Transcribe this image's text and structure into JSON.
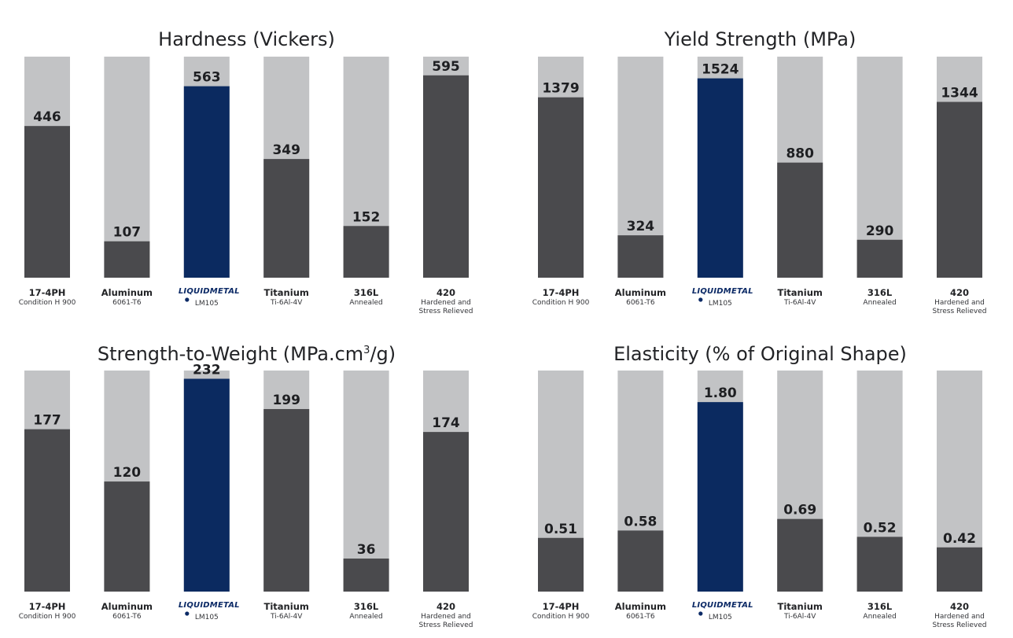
{
  "colors": {
    "background_bar": "#c2c3c5",
    "value_bar": "#4a4a4d",
    "highlight_bar": "#0b2a60",
    "text": "#1e1f22",
    "brand": "#0c2a66"
  },
  "categories": [
    {
      "name": "17-4PH",
      "sub": [
        "Condition H 900"
      ]
    },
    {
      "name": "Aluminum",
      "sub": [
        "6061-T6"
      ]
    },
    {
      "name": "LIQUIDMETAL",
      "sub": [
        "LM105"
      ],
      "is_brand_logo": true,
      "highlight": true
    },
    {
      "name": "Titanium",
      "sub": [
        "Ti-6Al-4V"
      ]
    },
    {
      "name": "316L",
      "sub": [
        "Annealed"
      ]
    },
    {
      "name": "420",
      "sub": [
        "Hardened and",
        "Stress Relieved"
      ]
    }
  ],
  "chart_data": [
    {
      "type": "bar",
      "title": "Hardness (Vickers)",
      "title_superscript": "",
      "title_suffix": "",
      "categories": [
        "17-4PH",
        "Aluminum",
        "LM105",
        "Titanium",
        "316L",
        "420"
      ],
      "values": [
        446,
        107,
        563,
        349,
        152,
        595
      ],
      "value_labels": [
        "446",
        "107",
        "563",
        "349",
        "152",
        "595"
      ],
      "ylim": [
        0,
        650
      ],
      "highlight_index": 2
    },
    {
      "type": "bar",
      "title": "Yield Strength (MPa)",
      "title_superscript": "",
      "title_suffix": "",
      "categories": [
        "17-4PH",
        "Aluminum",
        "LM105",
        "Titanium",
        "316L",
        "420"
      ],
      "values": [
        1379,
        324,
        1524,
        880,
        290,
        1344
      ],
      "value_labels": [
        "1379",
        "324",
        "1524",
        "880",
        "290",
        "1344"
      ],
      "ylim": [
        0,
        1690
      ],
      "highlight_index": 2
    },
    {
      "type": "bar",
      "title": "Strength-to-Weight (MPa.cm",
      "title_superscript": "3",
      "title_suffix": "/g)",
      "categories": [
        "17-4PH",
        "Aluminum",
        "LM105",
        "Titanium",
        "316L",
        "420"
      ],
      "values": [
        177,
        120,
        232,
        199,
        36,
        174
      ],
      "value_labels": [
        "177",
        "120",
        "232",
        "199",
        "36",
        "174"
      ],
      "ylim": [
        0,
        241
      ],
      "highlight_index": 2
    },
    {
      "type": "bar",
      "title": "Elasticity (% of Original Shape)",
      "title_superscript": "",
      "title_suffix": "",
      "categories": [
        "17-4PH",
        "Aluminum",
        "LM105",
        "Titanium",
        "316L",
        "420"
      ],
      "values": [
        0.51,
        0.58,
        1.8,
        0.69,
        0.52,
        0.42
      ],
      "value_labels": [
        "0.51",
        "0.58",
        "1.80",
        "0.69",
        "0.52",
        "0.42"
      ],
      "ylim": [
        0,
        2.1
      ],
      "highlight_index": 2
    }
  ]
}
